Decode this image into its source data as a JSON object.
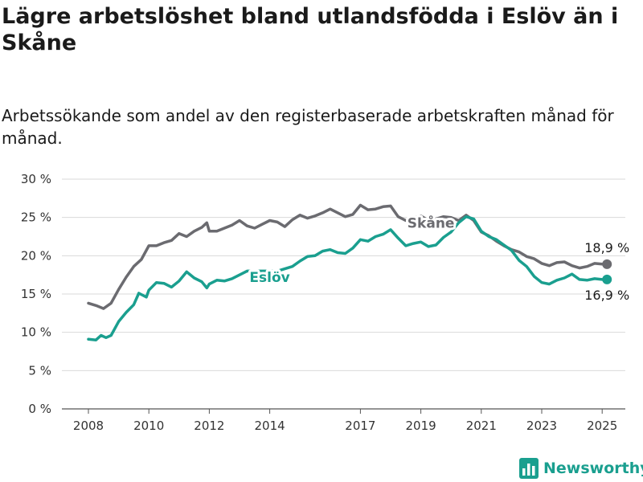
{
  "title": "Lägre arbetslöshet bland utlandsfödda i Eslöv än i Skåne",
  "subtitle": "Arbetssökande som andel av den registerbaserade arbetskraften månad för månad.",
  "brand": {
    "name": "Newsworthy",
    "icon": "bar-chart-logo-icon",
    "color": "#1a9f8f"
  },
  "chart_data": {
    "type": "line",
    "x_ticks": [
      "2008",
      "2010",
      "2012",
      "2014",
      "2017",
      "2019",
      "2021",
      "2023",
      "2025"
    ],
    "y_ticks": [
      "0 %",
      "5 %",
      "10 %",
      "15 %",
      "20 %",
      "25 %",
      "30 %"
    ],
    "ylim": [
      0,
      30
    ],
    "grid": true,
    "legend": "none (inline series labels)",
    "series": [
      {
        "name": "Skåne",
        "color": "#6b6b70",
        "end_label": "18,9 %",
        "points": [
          [
            "2008-01",
            13.8
          ],
          [
            "2008-04",
            13.5
          ],
          [
            "2008-07",
            13.1
          ],
          [
            "2008-10",
            13.8
          ],
          [
            "2009-01",
            15.6
          ],
          [
            "2009-04",
            17.2
          ],
          [
            "2009-07",
            18.6
          ],
          [
            "2009-10",
            19.5
          ],
          [
            "2010-01",
            21.3
          ],
          [
            "2010-04",
            21.3
          ],
          [
            "2010-07",
            21.7
          ],
          [
            "2010-10",
            22.0
          ],
          [
            "2011-01",
            22.9
          ],
          [
            "2011-04",
            22.5
          ],
          [
            "2011-07",
            23.2
          ],
          [
            "2011-10",
            23.7
          ],
          [
            "2011-12",
            24.3
          ],
          [
            "2012-01",
            23.2
          ],
          [
            "2012-04",
            23.2
          ],
          [
            "2012-07",
            23.6
          ],
          [
            "2012-10",
            24.0
          ],
          [
            "2013-01",
            24.6
          ],
          [
            "2013-04",
            23.9
          ],
          [
            "2013-07",
            23.6
          ],
          [
            "2013-10",
            24.1
          ],
          [
            "2014-01",
            24.6
          ],
          [
            "2014-04",
            24.4
          ],
          [
            "2014-07",
            23.8
          ],
          [
            "2014-10",
            24.7
          ],
          [
            "2015-01",
            25.3
          ],
          [
            "2015-04",
            24.9
          ],
          [
            "2015-07",
            25.2
          ],
          [
            "2015-10",
            25.6
          ],
          [
            "2016-01",
            26.1
          ],
          [
            "2016-04",
            25.6
          ],
          [
            "2016-07",
            25.1
          ],
          [
            "2016-10",
            25.4
          ],
          [
            "2017-01",
            26.6
          ],
          [
            "2017-04",
            26.0
          ],
          [
            "2017-07",
            26.1
          ],
          [
            "2017-10",
            26.4
          ],
          [
            "2018-01",
            26.5
          ],
          [
            "2018-04",
            25.1
          ],
          [
            "2018-07",
            24.6
          ],
          [
            "2018-10",
            24.9
          ],
          [
            "2019-01",
            25.2
          ],
          [
            "2019-04",
            24.6
          ],
          [
            "2019-07",
            24.8
          ],
          [
            "2019-10",
            25.1
          ],
          [
            "2020-01",
            25.0
          ],
          [
            "2020-04",
            24.6
          ],
          [
            "2020-07",
            25.3
          ],
          [
            "2020-10",
            24.6
          ],
          [
            "2021-01",
            23.1
          ],
          [
            "2021-04",
            22.6
          ],
          [
            "2021-07",
            21.9
          ],
          [
            "2021-10",
            21.3
          ],
          [
            "2022-01",
            20.8
          ],
          [
            "2022-04",
            20.5
          ],
          [
            "2022-07",
            19.9
          ],
          [
            "2022-10",
            19.6
          ],
          [
            "2023-01",
            19.0
          ],
          [
            "2023-04",
            18.7
          ],
          [
            "2023-07",
            19.1
          ],
          [
            "2023-10",
            19.2
          ],
          [
            "2024-01",
            18.7
          ],
          [
            "2024-04",
            18.4
          ],
          [
            "2024-07",
            18.6
          ],
          [
            "2024-10",
            19.0
          ],
          [
            "2025-01",
            18.9
          ]
        ]
      },
      {
        "name": "Eslöv",
        "color": "#1a9f8f",
        "end_label": "16,9 %",
        "points": [
          [
            "2008-01",
            9.1
          ],
          [
            "2008-04",
            9.0
          ],
          [
            "2008-06",
            9.6
          ],
          [
            "2008-08",
            9.3
          ],
          [
            "2008-10",
            9.6
          ],
          [
            "2009-01",
            11.4
          ],
          [
            "2009-04",
            12.6
          ],
          [
            "2009-07",
            13.6
          ],
          [
            "2009-09",
            15.1
          ],
          [
            "2009-12",
            14.6
          ],
          [
            "2010-01",
            15.5
          ],
          [
            "2010-04",
            16.5
          ],
          [
            "2010-07",
            16.4
          ],
          [
            "2010-10",
            15.9
          ],
          [
            "2011-01",
            16.7
          ],
          [
            "2011-04",
            17.9
          ],
          [
            "2011-07",
            17.1
          ],
          [
            "2011-10",
            16.6
          ],
          [
            "2011-12",
            15.8
          ],
          [
            "2012-01",
            16.3
          ],
          [
            "2012-04",
            16.8
          ],
          [
            "2012-07",
            16.7
          ],
          [
            "2012-10",
            17.0
          ],
          [
            "2013-01",
            17.5
          ],
          [
            "2013-04",
            18.0
          ],
          [
            "2014-04",
            18.0
          ],
          [
            "2014-10",
            18.6
          ],
          [
            "2015-01",
            19.3
          ],
          [
            "2015-04",
            19.9
          ],
          [
            "2015-07",
            20.0
          ],
          [
            "2015-10",
            20.6
          ],
          [
            "2016-01",
            20.8
          ],
          [
            "2016-04",
            20.4
          ],
          [
            "2016-07",
            20.3
          ],
          [
            "2016-10",
            21.0
          ],
          [
            "2017-01",
            22.1
          ],
          [
            "2017-04",
            21.9
          ],
          [
            "2017-07",
            22.5
          ],
          [
            "2017-10",
            22.8
          ],
          [
            "2018-01",
            23.4
          ],
          [
            "2018-04",
            22.3
          ],
          [
            "2018-07",
            21.3
          ],
          [
            "2018-10",
            21.6
          ],
          [
            "2019-01",
            21.8
          ],
          [
            "2019-04",
            21.2
          ],
          [
            "2019-07",
            21.4
          ],
          [
            "2019-10",
            22.4
          ],
          [
            "2020-01",
            23.1
          ],
          [
            "2020-04",
            24.3
          ],
          [
            "2020-07",
            25.1
          ],
          [
            "2020-10",
            24.8
          ],
          [
            "2021-01",
            23.2
          ],
          [
            "2021-04",
            22.5
          ],
          [
            "2021-07",
            22.1
          ],
          [
            "2021-10",
            21.4
          ],
          [
            "2022-01",
            20.7
          ],
          [
            "2022-04",
            19.4
          ],
          [
            "2022-07",
            18.6
          ],
          [
            "2022-10",
            17.3
          ],
          [
            "2023-01",
            16.5
          ],
          [
            "2023-04",
            16.3
          ],
          [
            "2023-07",
            16.8
          ],
          [
            "2023-10",
            17.1
          ],
          [
            "2024-01",
            17.6
          ],
          [
            "2024-04",
            16.9
          ],
          [
            "2024-07",
            16.8
          ],
          [
            "2024-10",
            17.0
          ],
          [
            "2025-01",
            16.9
          ]
        ]
      }
    ]
  }
}
